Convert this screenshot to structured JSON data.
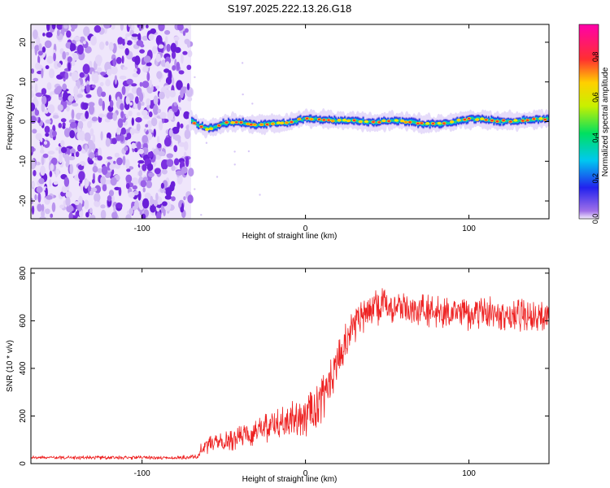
{
  "title": "S197.2025.222.13.26.G18",
  "chart_data": [
    {
      "type": "heatmap",
      "name": "spectrogram",
      "xlabel": "Height of straight line (km)",
      "ylabel": "Frequency (Hz)",
      "xlim": [
        -168,
        149
      ],
      "ylim": [
        -24.5,
        24.5
      ],
      "xticks": [
        -100,
        0,
        100
      ],
      "xtick_labels": [
        "-100",
        "0",
        "100"
      ],
      "yticks": [
        -20,
        -10,
        0,
        10,
        20
      ],
      "ytick_labels": [
        "-20",
        "-10",
        "0",
        "10",
        "20"
      ],
      "noise_region_x": [
        -168,
        -70
      ],
      "signal_start_x": -70,
      "signal_center_freq_hz": [
        [
          -70,
          0.2
        ],
        [
          -65,
          -1.0
        ],
        [
          -60,
          -1.9
        ],
        [
          -55,
          -1.3
        ],
        [
          -50,
          -0.4
        ],
        [
          -40,
          -0.2
        ],
        [
          -30,
          -0.8
        ],
        [
          -20,
          -0.4
        ],
        [
          -10,
          -0.3
        ],
        [
          0,
          0.9
        ],
        [
          10,
          0.5
        ],
        [
          20,
          0.3
        ],
        [
          30,
          0.2
        ],
        [
          40,
          -0.2
        ],
        [
          50,
          0.2
        ],
        [
          60,
          0.1
        ],
        [
          70,
          -0.5
        ],
        [
          80,
          -0.6
        ],
        [
          90,
          -0.1
        ],
        [
          100,
          0.7
        ],
        [
          110,
          0.5
        ],
        [
          120,
          0.1
        ],
        [
          130,
          0.2
        ],
        [
          140,
          0.6
        ],
        [
          149,
          0.7
        ]
      ],
      "colorbar": {
        "label": "Normalized spectral amplitude",
        "range": [
          0,
          0.96
        ],
        "ticks": [
          0.0,
          0.2,
          0.4,
          0.6,
          0.8
        ],
        "tick_labels": [
          "0.0",
          "0.2",
          "0.4",
          "0.6",
          "0.8"
        ],
        "colormap": "rainbow: purple-blue-cyan-green-yellow-orange-red-magenta"
      }
    },
    {
      "type": "line",
      "name": "snr",
      "xlabel": "Height of straight line (km)",
      "ylabel": "SNR (10 * v/v)",
      "xlim": [
        -168,
        149
      ],
      "ylim": [
        0,
        820
      ],
      "xticks": [
        -100,
        0,
        100
      ],
      "xtick_labels": [
        "-100",
        "0",
        "100"
      ],
      "yticks": [
        0,
        200,
        400,
        600,
        800
      ],
      "ytick_labels": [
        "0",
        "200",
        "400",
        "600",
        "800"
      ],
      "series": [
        {
          "name": "SNR",
          "color": "#ee2222",
          "x": [
            -168,
            -150,
            -130,
            -110,
            -90,
            -75,
            -66,
            -64,
            -60,
            -55,
            -50,
            -45,
            -40,
            -35,
            -30,
            -25,
            -20,
            -15,
            -10,
            -5,
            0,
            5,
            10,
            15,
            20,
            25,
            30,
            35,
            40,
            45,
            50,
            60,
            70,
            80,
            90,
            100,
            110,
            120,
            130,
            140,
            149
          ],
          "mean": [
            25,
            25,
            25,
            25,
            25,
            25,
            28,
            60,
            75,
            85,
            90,
            100,
            110,
            120,
            135,
            150,
            160,
            170,
            180,
            190,
            200,
            230,
            265,
            340,
            430,
            520,
            580,
            620,
            650,
            660,
            665,
            650,
            645,
            640,
            630,
            625,
            635,
            630,
            625,
            625,
            625
          ],
          "amplitude": [
            8,
            8,
            8,
            8,
            8,
            10,
            12,
            25,
            35,
            40,
            40,
            45,
            50,
            55,
            60,
            65,
            70,
            75,
            80,
            85,
            90,
            95,
            95,
            95,
            90,
            80,
            75,
            75,
            80,
            80,
            75,
            70,
            70,
            70,
            70,
            70,
            70,
            70,
            70,
            70,
            70
          ]
        }
      ]
    }
  ]
}
